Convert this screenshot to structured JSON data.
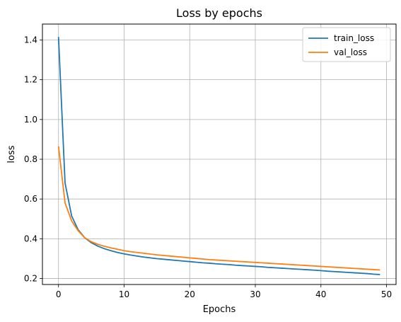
{
  "chart_data": {
    "type": "line",
    "title": "Loss by epochs",
    "xlabel": "Epochs",
    "ylabel": "loss",
    "xlim": [
      -2.45,
      51.45
    ],
    "ylim": [
      0.17,
      1.48
    ],
    "xticks": [
      0,
      10,
      20,
      30,
      40,
      50
    ],
    "yticks": [
      0.2,
      0.4,
      0.6,
      0.8,
      1.0,
      1.2,
      1.4
    ],
    "ytick_labels": [
      "0.2",
      "0.4",
      "0.6",
      "0.8",
      "1.0",
      "1.2",
      "1.4"
    ],
    "grid": true,
    "legend_position": "top-right",
    "series": [
      {
        "name": "train_loss",
        "color": "#1f77b4",
        "x": [
          0,
          1,
          2,
          3,
          4,
          5,
          6,
          7,
          8,
          9,
          10,
          11,
          12,
          13,
          14,
          15,
          16,
          17,
          18,
          19,
          20,
          21,
          22,
          23,
          24,
          25,
          26,
          27,
          28,
          29,
          30,
          31,
          32,
          33,
          34,
          35,
          36,
          37,
          38,
          39,
          40,
          41,
          42,
          43,
          44,
          45,
          46,
          47,
          48,
          49
        ],
        "y": [
          1.415,
          0.68,
          0.515,
          0.445,
          0.405,
          0.38,
          0.363,
          0.35,
          0.34,
          0.331,
          0.324,
          0.318,
          0.313,
          0.308,
          0.304,
          0.3,
          0.297,
          0.294,
          0.291,
          0.288,
          0.285,
          0.282,
          0.279,
          0.277,
          0.274,
          0.272,
          0.27,
          0.267,
          0.265,
          0.263,
          0.261,
          0.259,
          0.256,
          0.254,
          0.252,
          0.25,
          0.248,
          0.246,
          0.244,
          0.242,
          0.24,
          0.237,
          0.235,
          0.233,
          0.231,
          0.229,
          0.227,
          0.225,
          0.222,
          0.22
        ]
      },
      {
        "name": "val_loss",
        "color": "#ff7f0e",
        "x": [
          0,
          1,
          2,
          3,
          4,
          5,
          6,
          7,
          8,
          9,
          10,
          11,
          12,
          13,
          14,
          15,
          16,
          17,
          18,
          19,
          20,
          21,
          22,
          23,
          24,
          25,
          26,
          27,
          28,
          29,
          30,
          31,
          32,
          33,
          34,
          35,
          36,
          37,
          38,
          39,
          40,
          41,
          42,
          43,
          44,
          45,
          46,
          47,
          48,
          49
        ],
        "y": [
          0.865,
          0.58,
          0.49,
          0.44,
          0.405,
          0.385,
          0.372,
          0.362,
          0.354,
          0.347,
          0.34,
          0.335,
          0.331,
          0.327,
          0.323,
          0.319,
          0.316,
          0.313,
          0.31,
          0.307,
          0.304,
          0.301,
          0.298,
          0.295,
          0.293,
          0.291,
          0.289,
          0.287,
          0.285,
          0.283,
          0.281,
          0.279,
          0.277,
          0.275,
          0.273,
          0.271,
          0.269,
          0.267,
          0.265,
          0.263,
          0.261,
          0.259,
          0.257,
          0.255,
          0.253,
          0.251,
          0.249,
          0.247,
          0.245,
          0.243
        ]
      }
    ]
  }
}
